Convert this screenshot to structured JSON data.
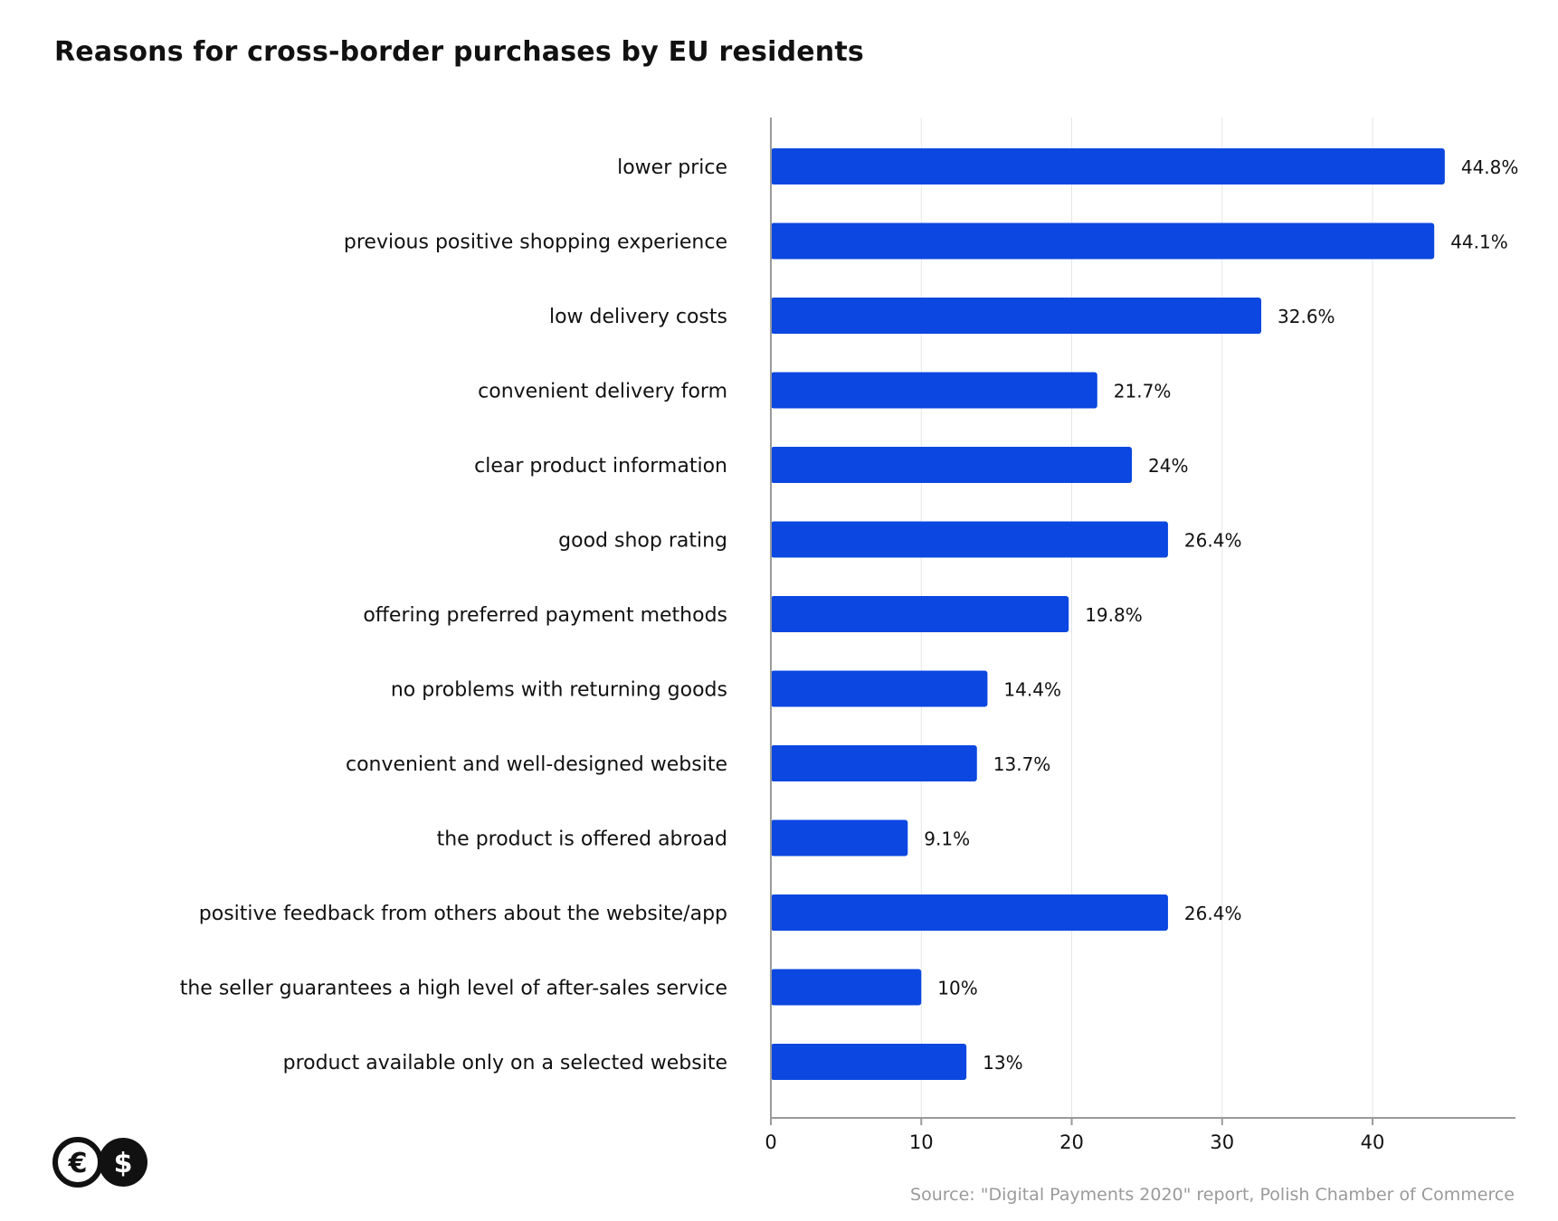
{
  "title": "Reasons for cross-border purchases by EU residents",
  "source": "Source: \"Digital Payments 2020\" report, Polish Chamber of Commerce",
  "logo": {
    "glyphs": [
      "€",
      "$"
    ],
    "icon": "currency-logo-icon"
  },
  "colors": {
    "bar": "#0b47e0",
    "grid": "#e6e6e6",
    "axis": "#9a9a9a",
    "text": "#111111",
    "source": "#9a9a9a"
  },
  "chart_data": {
    "type": "bar",
    "orientation": "horizontal",
    "title": "Reasons for cross-border purchases by EU residents",
    "xlabel": "",
    "ylabel": "",
    "xlim": [
      0,
      49.5
    ],
    "xticks": [
      0,
      10,
      20,
      30,
      40
    ],
    "grid": true,
    "categories": [
      "lower price",
      "previous positive shopping experience",
      "low delivery costs",
      "convenient delivery form",
      "clear product information",
      "good shop rating",
      "offering preferred payment methods",
      "no problems with returning goods",
      "convenient and well-designed website",
      "the product is offered abroad",
      "positive feedback from others about the website/app",
      "the seller guarantees a high level of after-sales service",
      "product available only on a selected website"
    ],
    "values": [
      44.8,
      44.1,
      32.6,
      21.7,
      24,
      26.4,
      19.8,
      14.4,
      13.7,
      9.1,
      26.4,
      10,
      13
    ],
    "value_labels": [
      "44.8%",
      "44.1%",
      "32.6%",
      "21.7%",
      "24%",
      "26.4%",
      "19.8%",
      "14.4%",
      "13.7%",
      "9.1%",
      "26.4%",
      "10%",
      "13%"
    ]
  }
}
